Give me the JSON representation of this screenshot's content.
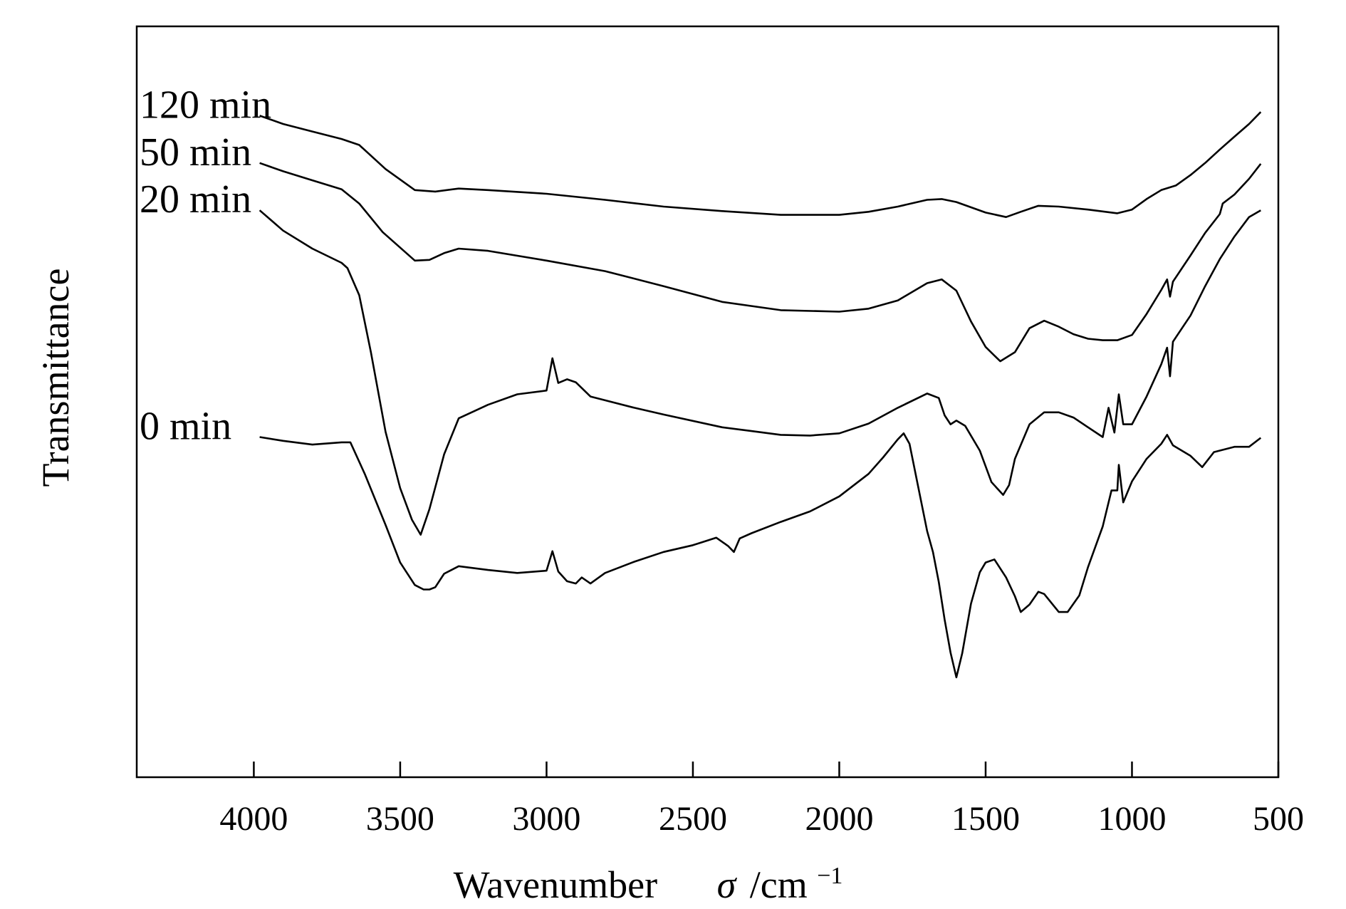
{
  "chart_data": {
    "type": "line",
    "xlabel": "Wavenumber",
    "xlabel_symbol": "σ",
    "xlabel_unit": "/cm",
    "xlabel_unit_exp": "−1",
    "ylabel": "Transmittance",
    "xlim": [
      4400,
      500
    ],
    "ylim": [
      0,
      100
    ],
    "x_reversed": true,
    "x_ticks": [
      4000,
      3500,
      3000,
      2500,
      2000,
      1500,
      1000,
      500
    ],
    "y_ticks": [],
    "grid": false,
    "legend": "inline labels at left",
    "series": [
      {
        "name": "120 min",
        "points": [
          [
            3980,
            88.1
          ],
          [
            3900,
            87.0
          ],
          [
            3800,
            86.0
          ],
          [
            3700,
            85.0
          ],
          [
            3640,
            84.2
          ],
          [
            3550,
            81.0
          ],
          [
            3450,
            78.2
          ],
          [
            3380,
            78.0
          ],
          [
            3300,
            78.4
          ],
          [
            3200,
            78.2
          ],
          [
            3000,
            77.7
          ],
          [
            2800,
            76.9
          ],
          [
            2600,
            76.0
          ],
          [
            2400,
            75.4
          ],
          [
            2200,
            74.9
          ],
          [
            2000,
            74.9
          ],
          [
            1900,
            75.3
          ],
          [
            1800,
            76.0
          ],
          [
            1700,
            76.9
          ],
          [
            1650,
            77.0
          ],
          [
            1600,
            76.6
          ],
          [
            1500,
            75.2
          ],
          [
            1430,
            74.6
          ],
          [
            1380,
            75.3
          ],
          [
            1320,
            76.1
          ],
          [
            1250,
            76.0
          ],
          [
            1150,
            75.6
          ],
          [
            1050,
            75.1
          ],
          [
            1000,
            75.6
          ],
          [
            950,
            77.0
          ],
          [
            900,
            78.2
          ],
          [
            850,
            78.8
          ],
          [
            800,
            80.2
          ],
          [
            750,
            81.8
          ],
          [
            700,
            83.6
          ],
          [
            650,
            85.3
          ],
          [
            600,
            87.0
          ],
          [
            560,
            88.6
          ]
        ]
      },
      {
        "name": "50 min",
        "points": [
          [
            3980,
            81.8
          ],
          [
            3900,
            80.7
          ],
          [
            3800,
            79.5
          ],
          [
            3700,
            78.3
          ],
          [
            3640,
            76.4
          ],
          [
            3560,
            72.6
          ],
          [
            3450,
            68.8
          ],
          [
            3400,
            68.9
          ],
          [
            3350,
            69.8
          ],
          [
            3300,
            70.4
          ],
          [
            3200,
            70.1
          ],
          [
            3000,
            68.8
          ],
          [
            2800,
            67.4
          ],
          [
            2600,
            65.4
          ],
          [
            2400,
            63.3
          ],
          [
            2200,
            62.2
          ],
          [
            2000,
            62.0
          ],
          [
            1900,
            62.4
          ],
          [
            1800,
            63.5
          ],
          [
            1700,
            65.8
          ],
          [
            1650,
            66.3
          ],
          [
            1600,
            64.8
          ],
          [
            1550,
            60.7
          ],
          [
            1500,
            57.3
          ],
          [
            1450,
            55.4
          ],
          [
            1400,
            56.6
          ],
          [
            1350,
            59.8
          ],
          [
            1300,
            60.8
          ],
          [
            1250,
            60.0
          ],
          [
            1200,
            59.0
          ],
          [
            1150,
            58.4
          ],
          [
            1100,
            58.2
          ],
          [
            1050,
            58.2
          ],
          [
            1000,
            58.9
          ],
          [
            950,
            61.7
          ],
          [
            900,
            64.9
          ],
          [
            880,
            66.3
          ],
          [
            870,
            64.0
          ],
          [
            860,
            66.0
          ],
          [
            800,
            69.5
          ],
          [
            750,
            72.5
          ],
          [
            700,
            75.0
          ],
          [
            690,
            76.4
          ],
          [
            650,
            77.6
          ],
          [
            600,
            79.7
          ],
          [
            560,
            81.7
          ]
        ]
      },
      {
        "name": "20 min",
        "points": [
          [
            3980,
            75.5
          ],
          [
            3900,
            72.8
          ],
          [
            3800,
            70.4
          ],
          [
            3700,
            68.5
          ],
          [
            3680,
            67.8
          ],
          [
            3640,
            64.2
          ],
          [
            3600,
            56.6
          ],
          [
            3550,
            46.0
          ],
          [
            3500,
            38.5
          ],
          [
            3460,
            34.3
          ],
          [
            3430,
            32.3
          ],
          [
            3400,
            35.7
          ],
          [
            3350,
            43.0
          ],
          [
            3300,
            47.8
          ],
          [
            3250,
            48.7
          ],
          [
            3200,
            49.6
          ],
          [
            3100,
            51.0
          ],
          [
            3000,
            51.5
          ],
          [
            2980,
            55.8
          ],
          [
            2960,
            52.5
          ],
          [
            2930,
            53.0
          ],
          [
            2900,
            52.6
          ],
          [
            2850,
            50.7
          ],
          [
            2800,
            50.2
          ],
          [
            2700,
            49.2
          ],
          [
            2600,
            48.3
          ],
          [
            2400,
            46.6
          ],
          [
            2300,
            46.1
          ],
          [
            2200,
            45.6
          ],
          [
            2100,
            45.5
          ],
          [
            2000,
            45.8
          ],
          [
            1900,
            47.1
          ],
          [
            1800,
            49.2
          ],
          [
            1700,
            51.1
          ],
          [
            1660,
            50.5
          ],
          [
            1640,
            48.2
          ],
          [
            1620,
            47.0
          ],
          [
            1600,
            47.5
          ],
          [
            1570,
            46.8
          ],
          [
            1520,
            43.5
          ],
          [
            1480,
            39.3
          ],
          [
            1440,
            37.6
          ],
          [
            1420,
            38.9
          ],
          [
            1400,
            42.4
          ],
          [
            1350,
            47.0
          ],
          [
            1300,
            48.6
          ],
          [
            1250,
            48.6
          ],
          [
            1200,
            47.9
          ],
          [
            1150,
            46.6
          ],
          [
            1100,
            45.3
          ],
          [
            1080,
            49.2
          ],
          [
            1060,
            45.9
          ],
          [
            1045,
            51.0
          ],
          [
            1030,
            47.0
          ],
          [
            1000,
            47.0
          ],
          [
            950,
            50.7
          ],
          [
            900,
            55.0
          ],
          [
            880,
            57.2
          ],
          [
            870,
            53.4
          ],
          [
            860,
            58.0
          ],
          [
            800,
            61.5
          ],
          [
            750,
            65.4
          ],
          [
            700,
            69.0
          ],
          [
            650,
            72.0
          ],
          [
            600,
            74.6
          ],
          [
            560,
            75.5
          ]
        ]
      },
      {
        "name": "0 min",
        "points": [
          [
            3980,
            45.3
          ],
          [
            3900,
            44.8
          ],
          [
            3800,
            44.3
          ],
          [
            3700,
            44.6
          ],
          [
            3670,
            44.6
          ],
          [
            3620,
            40.3
          ],
          [
            3550,
            33.6
          ],
          [
            3500,
            28.6
          ],
          [
            3450,
            25.6
          ],
          [
            3420,
            25.0
          ],
          [
            3400,
            25.0
          ],
          [
            3380,
            25.3
          ],
          [
            3350,
            27.1
          ],
          [
            3300,
            28.1
          ],
          [
            3200,
            27.6
          ],
          [
            3100,
            27.2
          ],
          [
            3000,
            27.5
          ],
          [
            2980,
            30.1
          ],
          [
            2960,
            27.4
          ],
          [
            2930,
            26.1
          ],
          [
            2900,
            25.8
          ],
          [
            2880,
            26.6
          ],
          [
            2850,
            25.8
          ],
          [
            2800,
            27.2
          ],
          [
            2700,
            28.7
          ],
          [
            2600,
            30.0
          ],
          [
            2500,
            30.9
          ],
          [
            2420,
            31.9
          ],
          [
            2380,
            30.8
          ],
          [
            2360,
            30.0
          ],
          [
            2340,
            31.8
          ],
          [
            2300,
            32.5
          ],
          [
            2200,
            34.0
          ],
          [
            2100,
            35.4
          ],
          [
            2000,
            37.4
          ],
          [
            1900,
            40.4
          ],
          [
            1850,
            42.6
          ],
          [
            1800,
            45.0
          ],
          [
            1780,
            45.8
          ],
          [
            1760,
            44.4
          ],
          [
            1700,
            32.8
          ],
          [
            1680,
            30.0
          ],
          [
            1660,
            26.0
          ],
          [
            1640,
            21.0
          ],
          [
            1620,
            16.6
          ],
          [
            1600,
            13.3
          ],
          [
            1580,
            16.5
          ],
          [
            1550,
            23.1
          ],
          [
            1520,
            27.3
          ],
          [
            1500,
            28.6
          ],
          [
            1470,
            29.0
          ],
          [
            1430,
            26.6
          ],
          [
            1400,
            24.1
          ],
          [
            1380,
            22.0
          ],
          [
            1350,
            23.0
          ],
          [
            1320,
            24.7
          ],
          [
            1300,
            24.4
          ],
          [
            1250,
            22.0
          ],
          [
            1220,
            22.0
          ],
          [
            1180,
            24.2
          ],
          [
            1150,
            28.0
          ],
          [
            1100,
            33.4
          ],
          [
            1070,
            38.2
          ],
          [
            1050,
            38.2
          ],
          [
            1045,
            41.6
          ],
          [
            1030,
            36.6
          ],
          [
            1000,
            39.4
          ],
          [
            950,
            42.4
          ],
          [
            900,
            44.4
          ],
          [
            880,
            45.6
          ],
          [
            860,
            44.2
          ],
          [
            800,
            42.8
          ],
          [
            760,
            41.3
          ],
          [
            720,
            43.3
          ],
          [
            650,
            44.0
          ],
          [
            600,
            44.0
          ],
          [
            560,
            45.2
          ]
        ]
      }
    ]
  }
}
